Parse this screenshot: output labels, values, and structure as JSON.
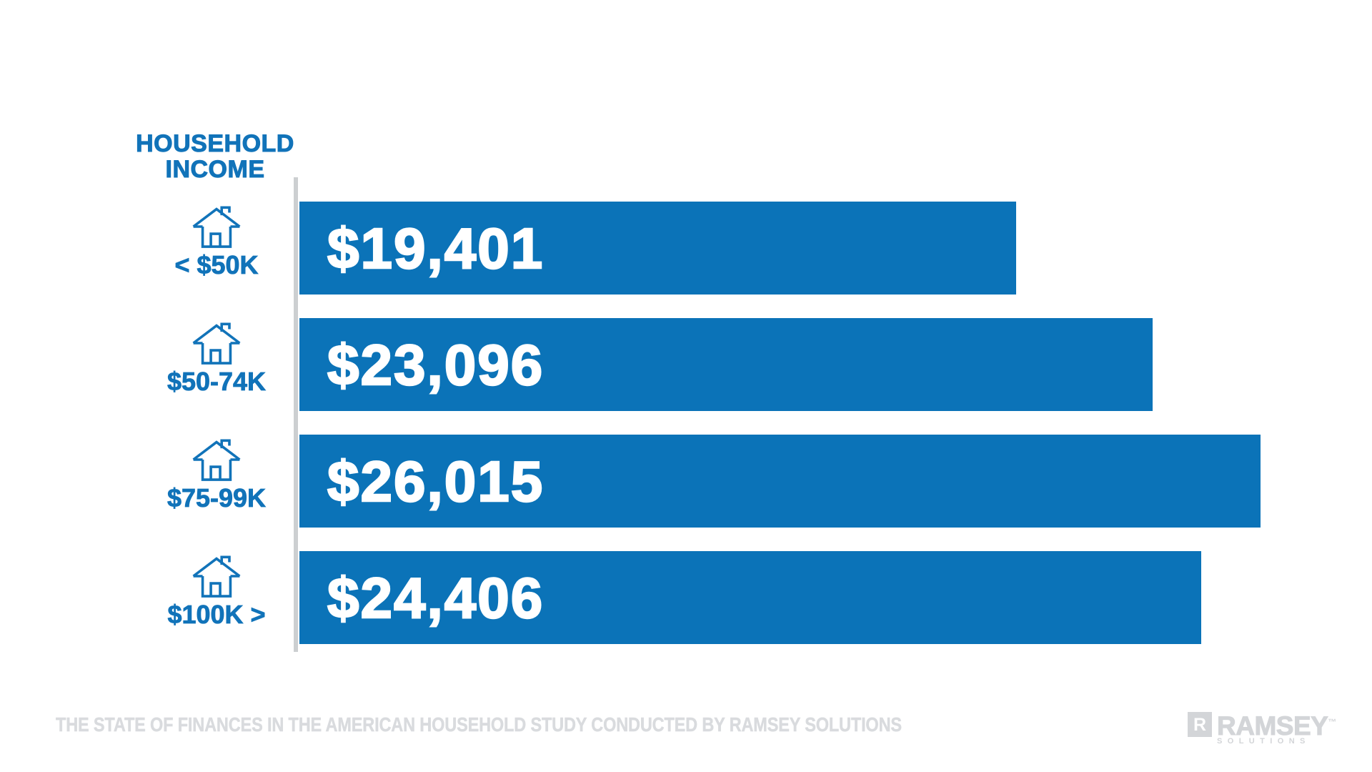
{
  "chart_data": {
    "type": "bar",
    "orientation": "horizontal",
    "title": "HOUSEHOLD INCOME",
    "title_lines": [
      "HOUSEHOLD",
      "INCOME"
    ],
    "categories": [
      "< $50K",
      "$50-74K",
      "$75-99K",
      "$100K >"
    ],
    "values": [
      19401,
      23096,
      26015,
      24406
    ],
    "value_labels": [
      "$19,401",
      "$23,096",
      "$26,015",
      "$24,406"
    ],
    "xlim": [
      0,
      26015
    ],
    "gridlines": false,
    "legend": false,
    "bar_color": "#0b73b8",
    "category_icon": "house-icon"
  },
  "footer": {
    "source_text": "THE STATE OF FINANCES IN THE AMERICAN HOUSEHOLD STUDY CONDUCTED BY RAMSEY SOLUTIONS",
    "logo": {
      "icon_letter": "R",
      "brand": "RAMSEY",
      "trademark": "™",
      "subtitle": "SOLUTIONS"
    }
  },
  "colors": {
    "bar_blue": "#0b73b8",
    "accent_blue": "#1173b9",
    "axis_gray": "#cccfd1",
    "footer_gray": "#d9dbde",
    "logo_gray": "#d3d5d8"
  }
}
